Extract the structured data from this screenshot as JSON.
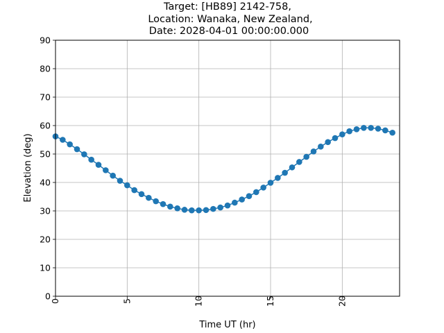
{
  "chart_data": {
    "type": "scatter",
    "title": [
      "Target: [HB89] 2142-758,",
      "Location: Wanaka, New Zealand,",
      "Date: 2028-04-01 00:00:00.000"
    ],
    "xlabel": "Time UT (hr)",
    "ylabel": "Elevation (deg)",
    "xlim": [
      0,
      24
    ],
    "ylim": [
      0,
      90
    ],
    "xticks": [
      0,
      5,
      10,
      15,
      20
    ],
    "yticks": [
      0,
      10,
      20,
      30,
      40,
      50,
      60,
      70,
      80,
      90
    ],
    "grid": true,
    "marker_color": "#1f77b4",
    "line_color": "#1f77b4",
    "x": [
      0,
      0.5,
      1,
      1.5,
      2,
      2.5,
      3,
      3.5,
      4,
      4.5,
      5,
      5.5,
      6,
      6.5,
      7,
      7.5,
      8,
      8.5,
      9,
      9.5,
      10,
      10.5,
      11,
      11.5,
      12,
      12.5,
      13,
      13.5,
      14,
      14.5,
      15,
      15.5,
      16,
      16.5,
      17,
      17.5,
      18,
      18.5,
      19,
      19.5,
      20,
      20.5,
      21,
      21.5,
      22,
      22.5,
      23,
      23.5
    ],
    "y": [
      56.2,
      55.0,
      53.4,
      51.7,
      49.9,
      48.0,
      46.2,
      44.3,
      42.4,
      40.6,
      39.0,
      37.3,
      35.9,
      34.6,
      33.4,
      32.4,
      31.5,
      30.9,
      30.4,
      30.2,
      30.2,
      30.3,
      30.7,
      31.2,
      31.9,
      32.9,
      34.0,
      35.2,
      36.6,
      38.2,
      39.9,
      41.6,
      43.4,
      45.3,
      47.2,
      49.0,
      50.9,
      52.6,
      54.2,
      55.6,
      56.9,
      58.0,
      58.7,
      59.2,
      59.2,
      58.9,
      58.3,
      57.5
    ]
  }
}
